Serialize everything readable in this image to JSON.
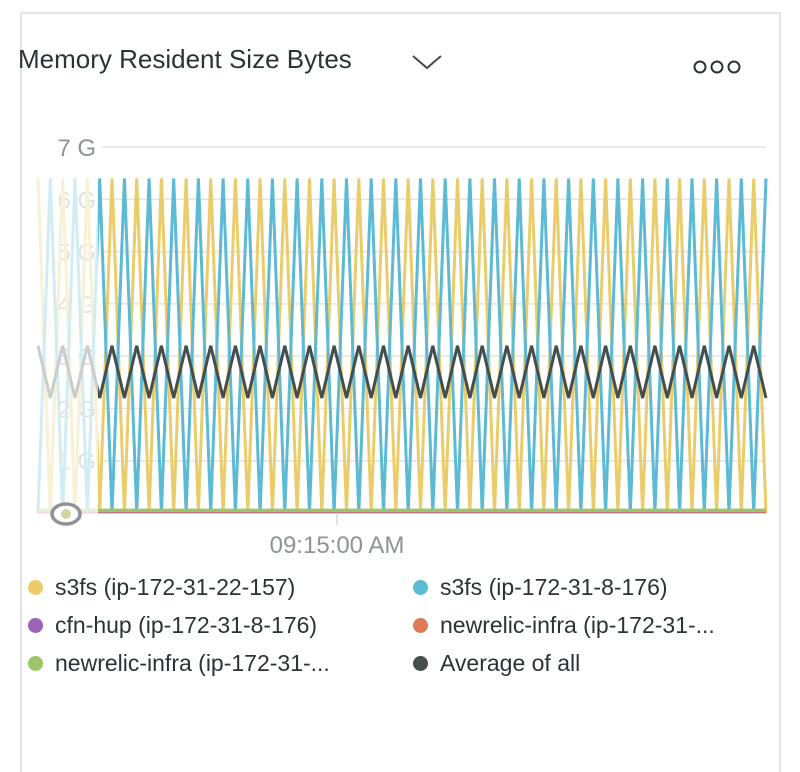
{
  "widget": {
    "title": "Memory Resident Size Bytes",
    "dropdown_icon": "chevron-down-icon",
    "menu_icon": "more-horizontal-icon"
  },
  "chart_data": {
    "type": "line",
    "title": "Memory Resident Size Bytes",
    "ylim": [
      0,
      7000000000
    ],
    "y_ticks": [
      {
        "value": 1000000000,
        "label": "1 G"
      },
      {
        "value": 2000000000,
        "label": "2 G"
      },
      {
        "value": 3000000000,
        "label": "3 G"
      },
      {
        "value": 4000000000,
        "label": "4 G"
      },
      {
        "value": 5000000000,
        "label": "5 G"
      },
      {
        "value": 6000000000,
        "label": "6 G"
      },
      {
        "value": 7000000000,
        "label": "7 G"
      }
    ],
    "x_ticks": [
      {
        "label": "09:15:00 AM"
      }
    ],
    "grid": true,
    "legend_position": "bottom",
    "series": [
      {
        "name": "s3fs (ip-172-31-22-157)",
        "color": "#eacd6a",
        "values": [
          6.4,
          0,
          6.4,
          0,
          6.4,
          0,
          6.4,
          0,
          6.4,
          0,
          6.4,
          0,
          6.4,
          0,
          6.4,
          0,
          6.4,
          0,
          6.4,
          0,
          6.4,
          0,
          6.4,
          0,
          6.4,
          0,
          6.4,
          0,
          6.4,
          0,
          6.4,
          0,
          6.4,
          0,
          6.4,
          0,
          6.4,
          0,
          6.4,
          0,
          6.4,
          0,
          6.4,
          0,
          6.4,
          0,
          6.4,
          0,
          6.4,
          0,
          6.4,
          0,
          6.4,
          0,
          6.4,
          0,
          6.4,
          0,
          6.4,
          0
        ]
      },
      {
        "name": "s3fs (ip-172-31-8-176)",
        "color": "#5cbad4",
        "values": [
          0,
          6.4,
          0,
          6.4,
          0,
          6.4,
          0,
          6.4,
          0,
          6.4,
          0,
          6.4,
          0,
          6.4,
          0,
          6.4,
          0,
          6.4,
          0,
          6.4,
          0,
          6.4,
          0,
          6.4,
          0,
          6.4,
          0,
          6.4,
          0,
          6.4,
          0,
          6.4,
          0,
          6.4,
          0,
          6.4,
          0,
          6.4,
          0,
          6.4,
          0,
          6.4,
          0,
          6.4,
          0,
          6.4,
          0,
          6.4,
          0,
          6.4,
          0,
          6.4,
          0,
          6.4,
          0,
          6.4,
          0,
          6.4,
          0,
          6.4
        ]
      },
      {
        "name": "cfn-hup (ip-172-31-8-176)",
        "color": "#9b63b5",
        "values": [
          0.03,
          0.03,
          0.03,
          0.03,
          0.03,
          0.03,
          0.03,
          0.03,
          0.03,
          0.03,
          0.03,
          0.03,
          0.03,
          0.03,
          0.03,
          0.03,
          0.03,
          0.03,
          0.03,
          0.03,
          0.03,
          0.03,
          0.03,
          0.03,
          0.03,
          0.03,
          0.03,
          0.03,
          0.03,
          0.03,
          0.03,
          0.03,
          0.03,
          0.03,
          0.03,
          0.03,
          0.03,
          0.03,
          0.03,
          0.03,
          0.03,
          0.03,
          0.03,
          0.03,
          0.03,
          0.03,
          0.03,
          0.03,
          0.03,
          0.03,
          0.03,
          0.03,
          0.03,
          0.03,
          0.03,
          0.03,
          0.03,
          0.03,
          0.03,
          0.03
        ]
      },
      {
        "name": "newrelic-infra (ip-172-31-...",
        "color": "#e07a5b",
        "values": [
          0.04,
          0.04,
          0.04,
          0.04,
          0.04,
          0.04,
          0.04,
          0.04,
          0.04,
          0.04,
          0.04,
          0.04,
          0.04,
          0.04,
          0.04,
          0.04,
          0.04,
          0.04,
          0.04,
          0.04,
          0.04,
          0.04,
          0.04,
          0.04,
          0.04,
          0.04,
          0.04,
          0.04,
          0.04,
          0.04,
          0.04,
          0.04,
          0.04,
          0.04,
          0.04,
          0.04,
          0.04,
          0.04,
          0.04,
          0.04,
          0.04,
          0.04,
          0.04,
          0.04,
          0.04,
          0.04,
          0.04,
          0.04,
          0.04,
          0.04,
          0.04,
          0.04,
          0.04,
          0.04,
          0.04,
          0.04,
          0.04,
          0.04,
          0.04,
          0.04
        ]
      },
      {
        "name": "newrelic-infra (ip-172-31-...",
        "color": "#9cc46b",
        "values": [
          0.05,
          0.05,
          0.05,
          0.05,
          0.05,
          0.05,
          0.05,
          0.05,
          0.05,
          0.05,
          0.05,
          0.05,
          0.05,
          0.05,
          0.05,
          0.05,
          0.05,
          0.05,
          0.05,
          0.05,
          0.05,
          0.05,
          0.05,
          0.05,
          0.05,
          0.05,
          0.05,
          0.05,
          0.05,
          0.05,
          0.05,
          0.05,
          0.05,
          0.05,
          0.05,
          0.05,
          0.05,
          0.05,
          0.05,
          0.05,
          0.05,
          0.05,
          0.05,
          0.05,
          0.05,
          0.05,
          0.05,
          0.05,
          0.05,
          0.05,
          0.05,
          0.05,
          0.05,
          0.05,
          0.05,
          0.05,
          0.05,
          0.05,
          0.05,
          0.05
        ]
      },
      {
        "name": "Average of all",
        "color": "#454d4d",
        "values": [
          3.2,
          2.2,
          3.2,
          2.2,
          3.2,
          2.2,
          3.2,
          2.2,
          3.2,
          2.2,
          3.2,
          2.2,
          3.2,
          2.2,
          3.2,
          2.2,
          3.2,
          2.2,
          3.2,
          2.2,
          3.2,
          2.2,
          3.2,
          2.2,
          3.2,
          2.2,
          3.2,
          2.2,
          3.2,
          2.2,
          3.2,
          2.2,
          3.2,
          2.2,
          3.2,
          2.2,
          3.2,
          2.2,
          3.2,
          2.2,
          3.2,
          2.2,
          3.2,
          2.2,
          3.2,
          2.2,
          3.2,
          2.2,
          3.2,
          2.2,
          3.2,
          2.2,
          3.2,
          2.2,
          3.2,
          2.2,
          3.2,
          2.2,
          3.2,
          2.2
        ]
      }
    ],
    "value_unit": "G"
  }
}
